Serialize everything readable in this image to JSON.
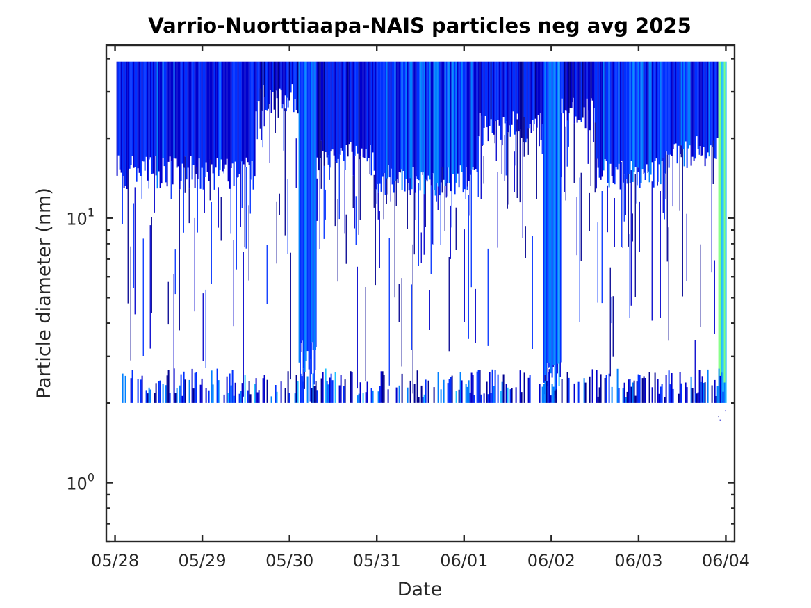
{
  "chart_data": {
    "type": "heatmap",
    "title": "Varrio-Nuorttiaapa-NAIS particles neg avg 2025",
    "xlabel": "Date",
    "ylabel": "Particle diameter (nm)",
    "x_ticks": [
      "05/28",
      "05/29",
      "05/30",
      "05/31",
      "06/01",
      "06/02",
      "06/03",
      "06/04"
    ],
    "x_range_days": [
      -0.1,
      7.1
    ],
    "y_scale": "log",
    "y_range": [
      0.6,
      45
    ],
    "y_ticks": [
      {
        "value": 1,
        "base": "10",
        "exp": "0"
      },
      {
        "value": 10,
        "base": "10",
        "exp": "1"
      }
    ],
    "data_diameter_range": [
      2.0,
      39.0
    ],
    "colormap": [
      "#00008f",
      "#0000cc",
      "#0030ff",
      "#0080ff",
      "#20c0ff",
      "#7fff80"
    ],
    "grid": false,
    "legend": "none",
    "daily_activity": [
      {
        "day_start": 0.0,
        "day_end": 1.6,
        "lower_diameter_nm": 15,
        "intensity": 0.35
      },
      {
        "day_start": 1.6,
        "day_end": 2.1,
        "lower_diameter_nm": 28,
        "intensity": 0.25
      },
      {
        "day_start": 2.1,
        "day_end": 2.3,
        "lower_diameter_nm": 3,
        "intensity": 0.5
      },
      {
        "day_start": 2.3,
        "day_end": 2.95,
        "lower_diameter_nm": 17,
        "intensity": 0.3
      },
      {
        "day_start": 2.95,
        "day_end": 4.15,
        "lower_diameter_nm": 14,
        "intensity": 0.4
      },
      {
        "day_start": 4.15,
        "day_end": 4.9,
        "lower_diameter_nm": 22,
        "intensity": 0.3
      },
      {
        "day_start": 4.9,
        "day_end": 5.1,
        "lower_diameter_nm": 2.5,
        "intensity": 0.55
      },
      {
        "day_start": 5.1,
        "day_end": 5.5,
        "lower_diameter_nm": 25,
        "intensity": 0.25
      },
      {
        "day_start": 5.5,
        "day_end": 6.3,
        "lower_diameter_nm": 15,
        "intensity": 0.4
      },
      {
        "day_start": 6.3,
        "day_end": 6.9,
        "lower_diameter_nm": 18,
        "intensity": 0.35
      },
      {
        "day_start": 6.9,
        "day_end": 7.0,
        "lower_diameter_nm": 2.0,
        "intensity": 0.85
      }
    ]
  }
}
